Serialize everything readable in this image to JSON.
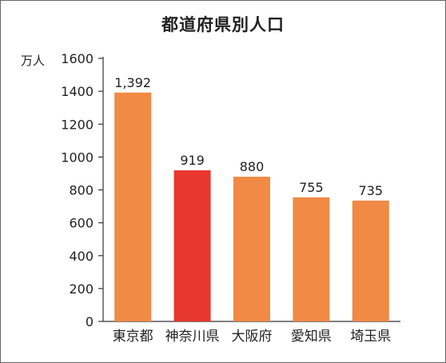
{
  "chart_data": {
    "type": "bar",
    "title": "都道府県別人口",
    "ylabel": "万人",
    "xlabel": "",
    "categories": [
      "東京都",
      "神奈川県",
      "大阪府",
      "愛知県",
      "埼玉県"
    ],
    "values": [
      1392,
      919,
      880,
      755,
      735
    ],
    "value_labels": [
      "1,392",
      "919",
      "880",
      "755",
      "735"
    ],
    "ylim": [
      0,
      1600
    ],
    "yticks": [
      0,
      200,
      400,
      600,
      800,
      1000,
      1200,
      1400,
      1600
    ],
    "grid": false,
    "legend": "none",
    "colors": {
      "default": "#f08a45",
      "highlight": "#e8372f",
      "axis": "#333333",
      "text": "#222222"
    },
    "highlight_index": 1
  }
}
